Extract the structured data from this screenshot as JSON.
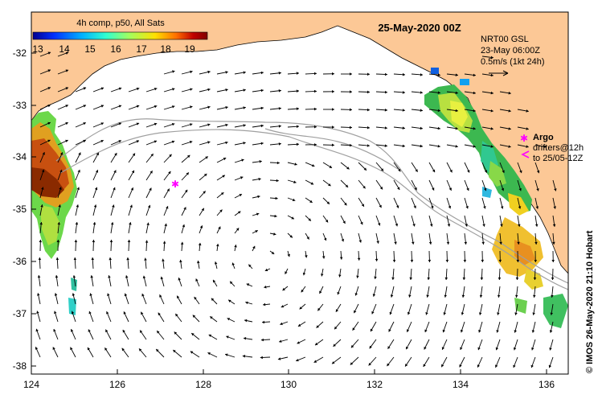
{
  "map": {
    "title": "25-May-2020 00Z",
    "colorbar_title": "4h comp, p50, All Sats",
    "colorbar_ticks": [
      "13",
      "14",
      "15",
      "16",
      "17",
      "18",
      "19"
    ],
    "colorbar_colors": [
      "#00008f",
      "#0030ff",
      "#00b0ff",
      "#30ffd0",
      "#a0ff60",
      "#ffe000",
      "#ff7000",
      "#c00000",
      "#800000"
    ],
    "lat_labels": [
      "-32",
      "-33",
      "-34",
      "-35",
      "-36",
      "-37",
      "-38"
    ],
    "lon_labels": [
      "124",
      "126",
      "128",
      "130",
      "132",
      "134",
      "136"
    ],
    "product_line1": "NRT00 GSL",
    "product_line2": "23-May 06:00Z",
    "product_line3": "0.5m/s (1kt 24h)",
    "argo_label": "Argo",
    "drifters_line1": "drifters@12h",
    "drifters_line2": "to 25/05-12Z",
    "credit": "© IMOS 26-May-2020 21:10 Hobart",
    "colors": {
      "land": "#fcc896",
      "argo": "#ff00ff",
      "drifter_track": "#a0a0a0"
    }
  }
}
